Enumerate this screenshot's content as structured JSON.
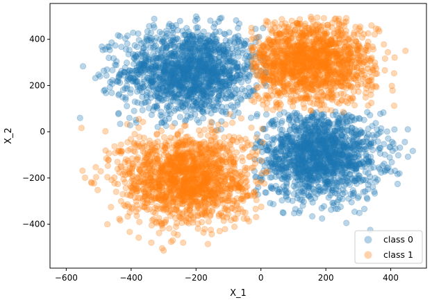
{
  "chart_data": {
    "type": "scatter",
    "title": "",
    "xlabel": "X_1",
    "ylabel": "X_2",
    "xlim": [
      -650,
      510
    ],
    "ylim": [
      -590,
      555
    ],
    "xticks": [
      -600,
      -400,
      -200,
      0,
      200,
      400
    ],
    "yticks": [
      -400,
      -200,
      0,
      200,
      400
    ],
    "xtick_labels": [
      "−600",
      "−400",
      "−200",
      "0",
      "200",
      "400"
    ],
    "ytick_labels": [
      "−400",
      "−200",
      "0",
      "200",
      "400"
    ],
    "grid": false,
    "legend_position": "bottom-right",
    "point_alpha": 0.3,
    "series": [
      {
        "name": "class 0",
        "color": "#1f77b4",
        "clusters": [
          {
            "center": [
              -220,
              260
            ],
            "spread": [
              105,
              95
            ],
            "extent": [
              [
                -600,
                20
              ],
              [
                0,
                500
              ]
            ],
            "count": 1500
          },
          {
            "center": [
              180,
              -100
            ],
            "spread": [
              95,
              95
            ],
            "extent": [
              [
                -20,
                480
              ],
              [
                -540,
                90
              ]
            ],
            "count": 1500
          }
        ]
      },
      {
        "name": "class 1",
        "color": "#ff7f0e",
        "clusters": [
          {
            "center": [
              150,
              300
            ],
            "spread": [
              100,
              90
            ],
            "extent": [
              [
                -30,
                450
              ],
              [
                80,
                500
              ]
            ],
            "count": 1500
          },
          {
            "center": [
              -230,
              -200
            ],
            "spread": [
              100,
              100
            ],
            "extent": [
              [
                -600,
                20
              ],
              [
                -540,
                90
              ]
            ],
            "count": 1500
          }
        ]
      }
    ]
  }
}
